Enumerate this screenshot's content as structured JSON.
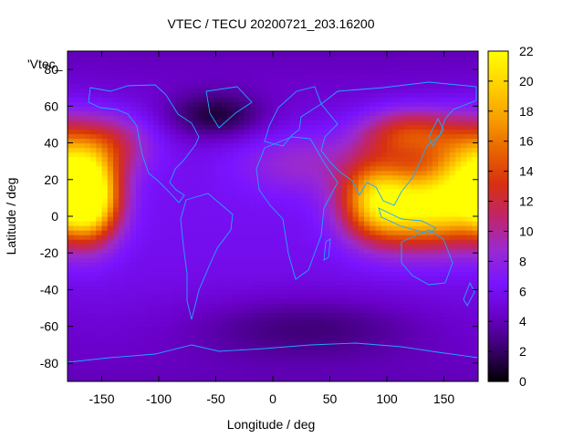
{
  "chart_data": {
    "type": "heatmap",
    "title": "VTEC / TECU 20200721_203.16200",
    "key_label": "'Vtec_",
    "xlabel": "Longitude / deg",
    "ylabel": "Latitude / deg",
    "xlim": [
      -180,
      180
    ],
    "ylim": [
      -90,
      90
    ],
    "x_ticks": [
      -150,
      -100,
      -50,
      0,
      50,
      100,
      150
    ],
    "y_ticks": [
      -80,
      -60,
      -40,
      -20,
      0,
      20,
      40,
      60,
      80
    ],
    "colorbar": {
      "range": [
        0,
        22
      ],
      "ticks": [
        0,
        2,
        4,
        6,
        8,
        10,
        12,
        14,
        16,
        18,
        20,
        22
      ],
      "palette": [
        "#000000",
        "#3a006e",
        "#6a00c8",
        "#7a14ff",
        "#9a2ad0",
        "#c0256a",
        "#d83010",
        "#e86400",
        "#f8a000",
        "#ffd200",
        "#ffff00"
      ]
    },
    "grid": false,
    "features": [
      {
        "lon": -160,
        "lat": 10,
        "vtec": 20,
        "sx": 18,
        "sy": 16
      },
      {
        "lon": 135,
        "lat": 5,
        "vtec": 19,
        "sx": 36,
        "sy": 15
      },
      {
        "lon": 175,
        "lat": 25,
        "vtec": 16,
        "sx": 25,
        "sy": 18
      },
      {
        "lon": 90,
        "lat": 10,
        "vtec": 15,
        "sx": 22,
        "sy": 15
      },
      {
        "lon": 120,
        "lat": 45,
        "vtec": 13,
        "sx": 30,
        "sy": 10
      },
      {
        "lon": -140,
        "lat": 40,
        "vtec": 10,
        "sx": 25,
        "sy": 12
      },
      {
        "lon": 25,
        "lat": 30,
        "vtec": 8,
        "sx": 40,
        "sy": 12
      },
      {
        "lon": -50,
        "lat": 55,
        "vtec": 1,
        "sx": 30,
        "sy": 9
      },
      {
        "lon": 30,
        "lat": -60,
        "vtec": 2.5,
        "sx": 70,
        "sy": 12
      }
    ]
  }
}
